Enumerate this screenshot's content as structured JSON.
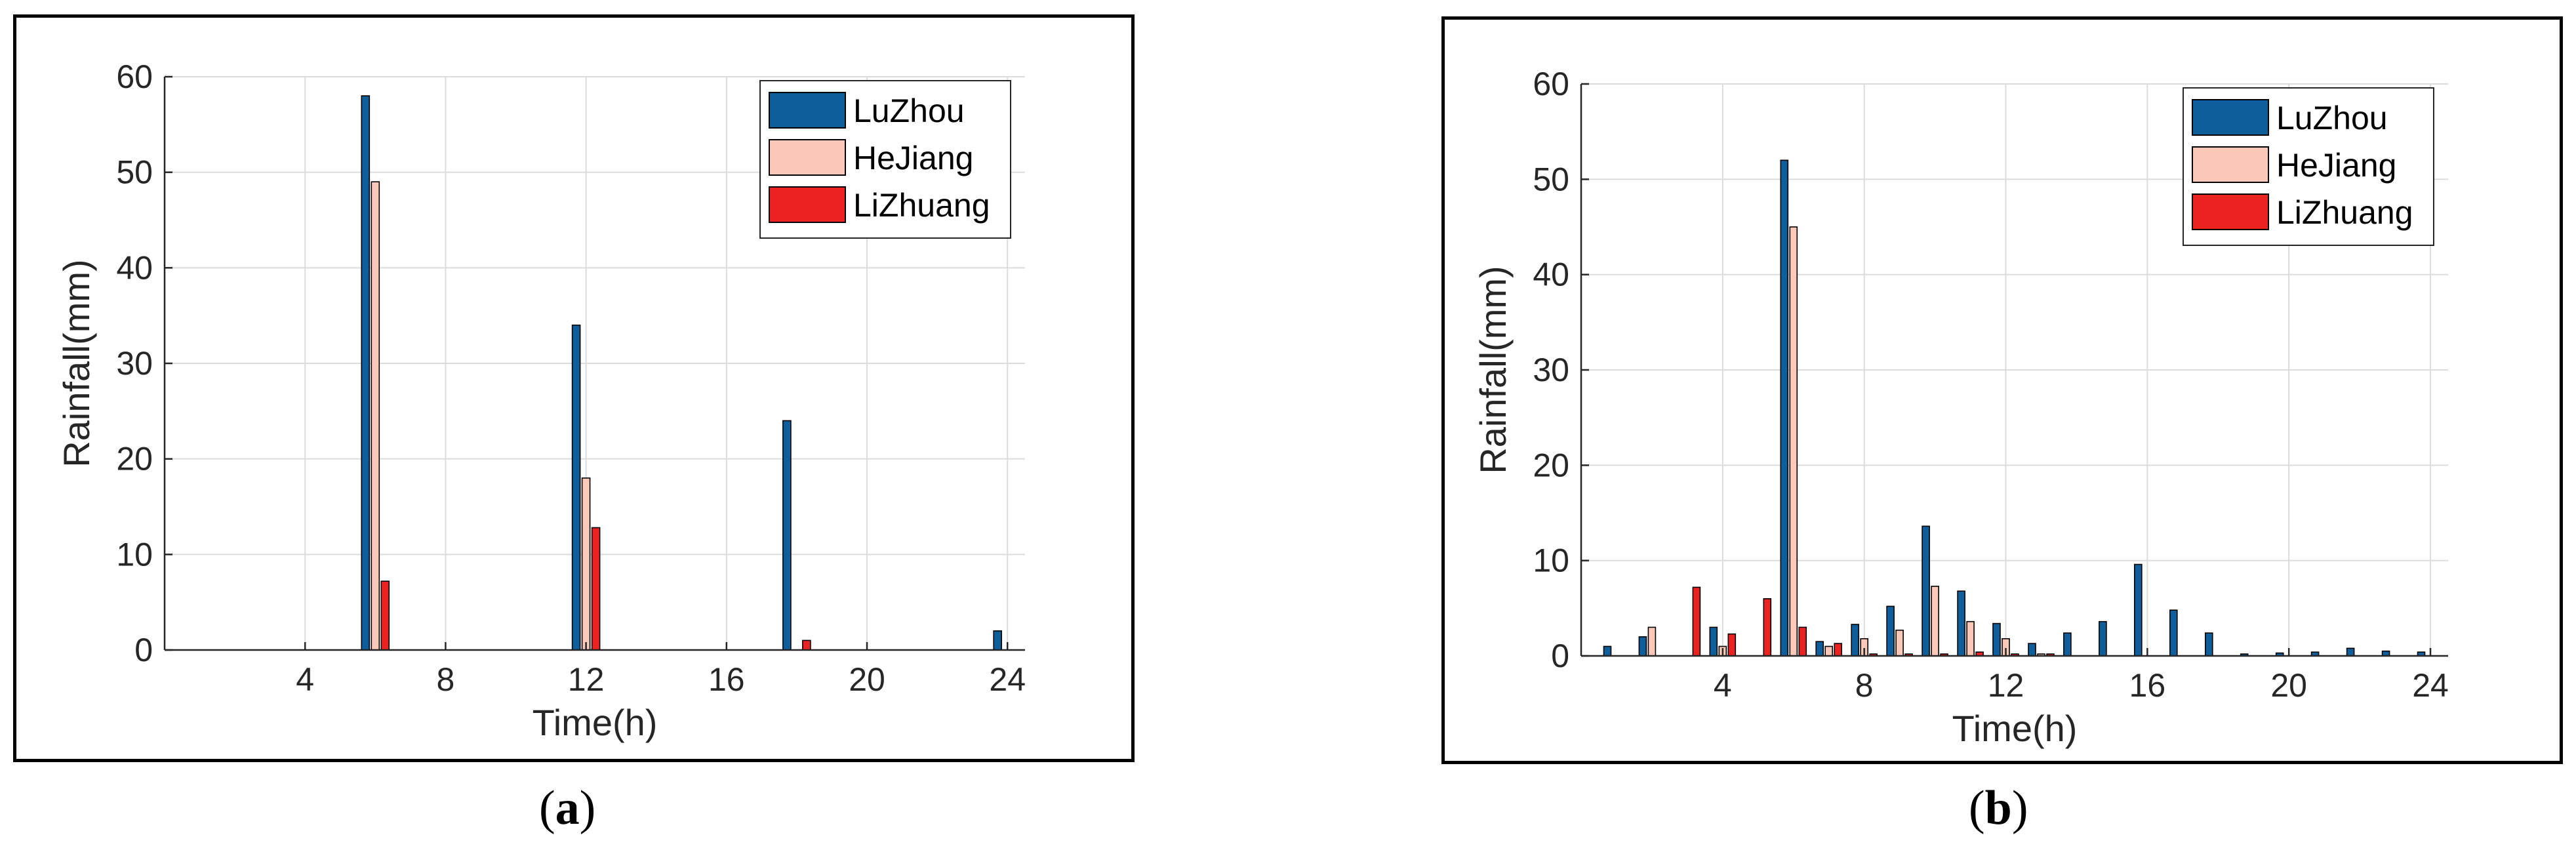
{
  "chart_data": [
    {
      "type": "bar",
      "panel": "a",
      "xlabel": "Time(h)",
      "ylabel": "Rainfall(mm)",
      "xlim": [
        0,
        24.5
      ],
      "ylim": [
        0,
        60
      ],
      "xticks": [
        4,
        8,
        12,
        16,
        20,
        24
      ],
      "yticks": [
        0,
        10,
        20,
        30,
        40,
        50,
        60
      ],
      "grid": true,
      "legend": "top-right",
      "x": [
        6,
        12,
        18,
        24
      ],
      "series": [
        {
          "name": "LuZhou",
          "color": "#0f5e9c",
          "values": [
            58,
            34,
            24,
            2
          ]
        },
        {
          "name": "HeJiang",
          "color": "#fcc8b8",
          "values": [
            49,
            18,
            0,
            0
          ]
        },
        {
          "name": "LiZhuang",
          "color": "#ea2320",
          "values": [
            7.2,
            12.8,
            1,
            0
          ]
        }
      ]
    },
    {
      "type": "bar",
      "panel": "b",
      "xlabel": "Time(h)",
      "ylabel": "Rainfall(mm)",
      "xlim": [
        0,
        24.5
      ],
      "ylim": [
        0,
        60
      ],
      "xticks": [
        4,
        8,
        12,
        16,
        20,
        24
      ],
      "yticks": [
        0,
        10,
        20,
        30,
        40,
        50,
        60
      ],
      "grid": true,
      "legend": "top-right",
      "x": [
        1,
        2,
        3,
        4,
        5,
        6,
        7,
        8,
        9,
        10,
        11,
        12,
        13,
        14,
        15,
        16,
        17,
        18,
        19,
        20,
        21,
        22,
        23,
        24
      ],
      "series": [
        {
          "name": "LuZhou",
          "color": "#0f5e9c",
          "values": [
            1,
            2,
            0,
            3,
            0,
            52,
            1.5,
            3.3,
            5.2,
            13.6,
            6.8,
            3.4,
            1.3,
            2.4,
            3.6,
            9.6,
            4.8,
            2.4,
            0.2,
            0.3,
            0.4,
            0.8,
            0.5,
            0.4
          ]
        },
        {
          "name": "HeJiang",
          "color": "#fcc8b8",
          "values": [
            0,
            3,
            0,
            1,
            0,
            45,
            1,
            1.8,
            2.7,
            7.3,
            3.6,
            1.8,
            0.2,
            0,
            0,
            0,
            0,
            0,
            0,
            0,
            0,
            0,
            0,
            0
          ]
        },
        {
          "name": "LiZhuang",
          "color": "#ea2320",
          "values": [
            0,
            0,
            7.2,
            2.3,
            6,
            3,
            1.3,
            0.2,
            0.2,
            0.2,
            0.4,
            0.2,
            0.2,
            0,
            0,
            0,
            0,
            0,
            0,
            0,
            0,
            0,
            0,
            0
          ]
        }
      ]
    }
  ],
  "captions": {
    "a": {
      "open": "(",
      "letter": "a",
      "close": ")"
    },
    "b": {
      "open": "(",
      "letter": "b",
      "close": ")"
    }
  }
}
